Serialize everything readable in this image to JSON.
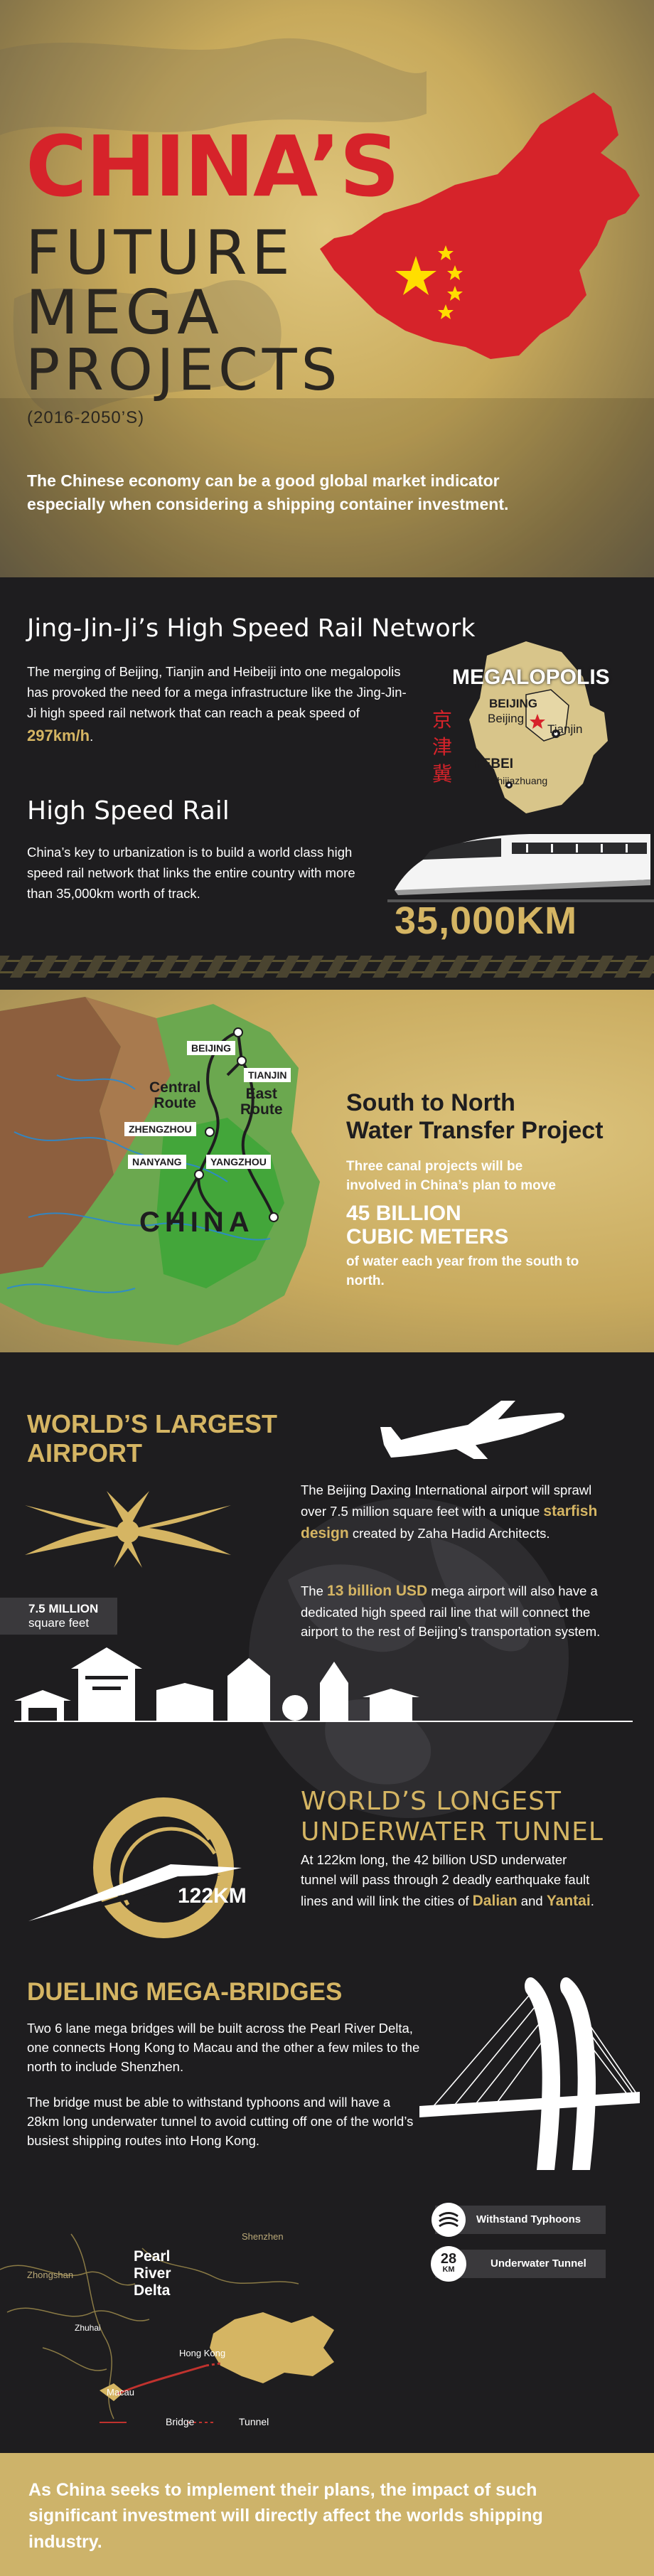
{
  "hero": {
    "title_line1": "CHINA’S",
    "title_line2": "FUTURE",
    "title_line3": "MEGA",
    "title_line4": "PROJECTS",
    "years": "(2016-2050’S)",
    "subtitle": "The Chinese economy can be a good global market indicator especially when considering a shipping container investment."
  },
  "rail": {
    "title": "Jing-Jin-Ji’s High Speed Rail Network",
    "body_before": "The merging of Beijing, Tianjin and Heibeiji into one megalopolis has provoked the need for a mega infrastructure like the Jing-Jin-Ji high speed rail network that can reach a peak speed of ",
    "body_speed": "297km/h",
    "body_after": ".",
    "map": {
      "title": "MEGALOPOLIS",
      "label_beijing_region": "BEIJING",
      "label_beijing": "Beijing",
      "label_tianjin": "Tianjin",
      "label_hebei": "HEBEI",
      "label_shijiazhuang": "Shijiazhuang",
      "vertical_chars": [
        "京",
        "津",
        "冀"
      ]
    },
    "hsr_title": "High Speed Rail",
    "hsr_body": "China’s key to urbanization is to build a world class high speed rail network that links the entire country with more than 35,000km worth of track.",
    "hsr_km": "35,000KM"
  },
  "water": {
    "cities": {
      "beijing": "BEIJING",
      "tianjin": "TIANJIN",
      "zhengzhou": "ZHENGZHOU",
      "nanyang": "NANYANG",
      "yangzhou": "YANGZHOU"
    },
    "central_route": "Central\nRoute",
    "east_route": "East\nRoute",
    "china_label": "CHINA",
    "title": "South to North\nWater Transfer Project",
    "body": "Three canal projects will be involved in China’s plan to move",
    "big": "45 BILLION\nCUBIC METERS",
    "body2": "of water each year from the south to north."
  },
  "airport": {
    "title": "WORLD’S LARGEST\nAIRPORT",
    "p1_before": "The Beijing Daxing International airport will sprawl over 7.5 million square feet with a unique ",
    "p1_highlight": "starfish design",
    "p1_after": " created by Zaha Hadid Architects.",
    "p2_before": "The ",
    "p2_highlight": "13 billion USD",
    "p2_after": " mega airport will also have a dedicated high speed rail line that will connect the airport to the rest of Beijing’s transportation system.",
    "area_big": "7.5 MILLION",
    "area_small": "square feet"
  },
  "tunnel": {
    "title": "WORLD’S LONGEST\nUNDERWATER TUNNEL",
    "length_label": "122KM",
    "body_before": "At 122km long, the 42 billion USD underwater tunnel will pass through 2 deadly earthquake fault lines and will link the cities of ",
    "city1": "Dalian",
    "and": " and ",
    "city2": "Yantai",
    "body_after": "."
  },
  "bridges": {
    "title": "DUELING MEGA-BRIDGES",
    "p1": "Two 6 lane mega bridges will be built across the Pearl River Delta, one connects Hong Kong to Macau and the other a few miles to the north to include Shenzhen.",
    "p2": "The bridge must be able to withstand typhoons and will have a 28km long underwater tunnel to avoid cutting off one of the world’s busiest shipping routes into Hong Kong.",
    "feature1": "Withstand Typhoons",
    "feature2_num": "28",
    "feature2_unit": "KM",
    "feature2": "Underwater Tunnel",
    "map": {
      "shenzhen": "Shenzhen",
      "zhongshan": "Zhongshan",
      "delta": "Pearl\nRiver\nDelta",
      "zhuhai": "Zhuhai",
      "hongkong": "Hong Kong",
      "macau": "Macau",
      "legend_bridge": "Bridge",
      "legend_tunnel": "Tunnel"
    }
  },
  "footer": {
    "text": "As China seeks to implement their plans, the impact of such significant investment will directly affect the worlds shipping industry."
  },
  "colors": {
    "gold": "#d5b563",
    "red": "#d6232a",
    "dark": "#1e1d1f"
  }
}
